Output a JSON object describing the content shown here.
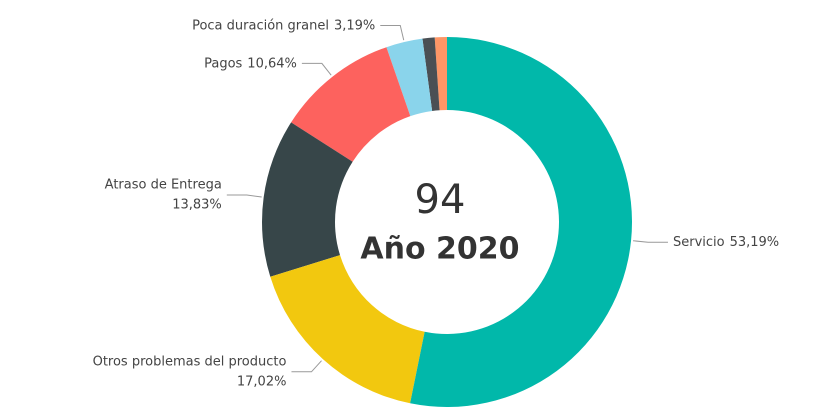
{
  "chart_data": {
    "type": "donut",
    "categories": [
      "Servicio",
      "Otros problemas del producto",
      "Atraso de Entrega",
      "Pagos",
      "Poca duración granel",
      null,
      null
    ],
    "values": [
      53.19,
      17.02,
      13.83,
      10.64,
      3.19,
      1.06,
      1.06
    ],
    "value_labels": [
      "53,19%",
      "17,02%",
      "13,83%",
      "10,64%",
      "3,19%",
      null,
      null
    ],
    "colors": [
      "#01B8AA",
      "#F2C80F",
      "#374649",
      "#FD625E",
      "#8AD4EB",
      "#4A4F54",
      "#FE9666"
    ],
    "center_value": 94,
    "center_label": "Año 2020"
  }
}
